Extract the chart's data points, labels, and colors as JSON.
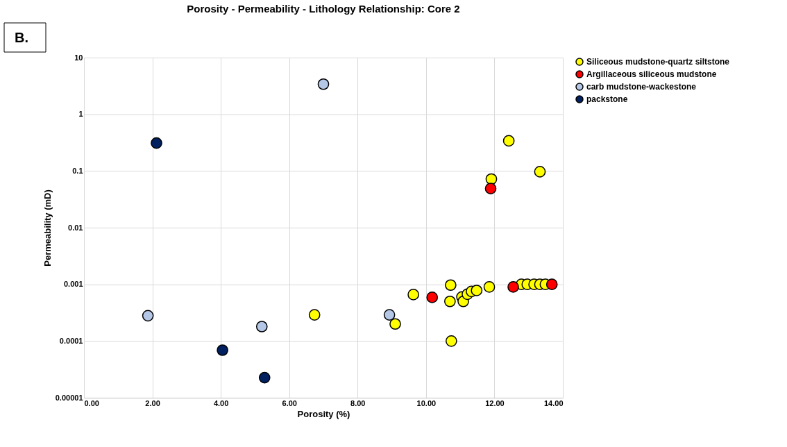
{
  "chart_data": {
    "type": "scatter",
    "title": "Porosity - Permeability - Lithology Relationship: Core 2",
    "xlabel": "Porosity (%)",
    "ylabel": "Permeability (mD)",
    "annotations": [
      "B."
    ],
    "log": "y",
    "grid": true,
    "legend": "right",
    "marker": "circle",
    "xlim": [
      0,
      14
    ],
    "xticks": [
      {
        "value": 0,
        "label": "0.00"
      },
      {
        "value": 2,
        "label": "2.00"
      },
      {
        "value": 4,
        "label": "4.00"
      },
      {
        "value": 6,
        "label": "6.00"
      },
      {
        "value": 8,
        "label": "8.00"
      },
      {
        "value": 10,
        "label": "10.00"
      },
      {
        "value": 12,
        "label": "12.00"
      },
      {
        "value": 14,
        "label": "14.00"
      }
    ],
    "ylim": [
      1e-05,
      10
    ],
    "yticks": [
      {
        "value": 1e-05,
        "label": "0.00001"
      },
      {
        "value": 0.0001,
        "label": "0.0001"
      },
      {
        "value": 0.001,
        "label": "0.001"
      },
      {
        "value": 0.01,
        "label": "0.01"
      },
      {
        "value": 0.1,
        "label": "0.1"
      },
      {
        "value": 1,
        "label": "1"
      },
      {
        "value": 10,
        "label": "10"
      }
    ],
    "series": [
      {
        "name": "Siliceous mudstone-quartz siltstone",
        "color": "#ffff00",
        "x": [
          12.42,
          11.91,
          13.33,
          6.74,
          9.1,
          9.63,
          10.7,
          10.72,
          10.74,
          11.05,
          11.09,
          11.21,
          11.33,
          11.48,
          11.85,
          12.79,
          12.96,
          13.16,
          13.33,
          13.49
        ],
        "values": [
          0.34,
          0.072,
          0.097,
          0.00029,
          0.0002,
          0.00066,
          0.0005,
          0.00097,
          0.0001,
          0.0006,
          0.0005,
          0.00067,
          0.00075,
          0.00078,
          0.0009,
          0.001,
          0.001,
          0.001,
          0.001,
          0.001
        ]
      },
      {
        "name": "Argillaceous siliceous mudstone",
        "color": "#ff0000",
        "x": [
          11.89,
          10.18,
          12.55,
          13.68
        ],
        "values": [
          0.049,
          0.00059,
          0.0009,
          0.001
        ]
      },
      {
        "name": "carb mudstone-wackestone",
        "color": "#b4c7e7",
        "x": [
          7.0,
          1.87,
          5.2,
          8.93
        ],
        "values": [
          3.4,
          0.00028,
          0.00018,
          0.00029
        ]
      },
      {
        "name": "packstone",
        "color": "#002060",
        "x": [
          2.12,
          4.05,
          5.28
        ],
        "values": [
          0.31,
          6.9e-05,
          2.26e-05
        ]
      }
    ]
  }
}
